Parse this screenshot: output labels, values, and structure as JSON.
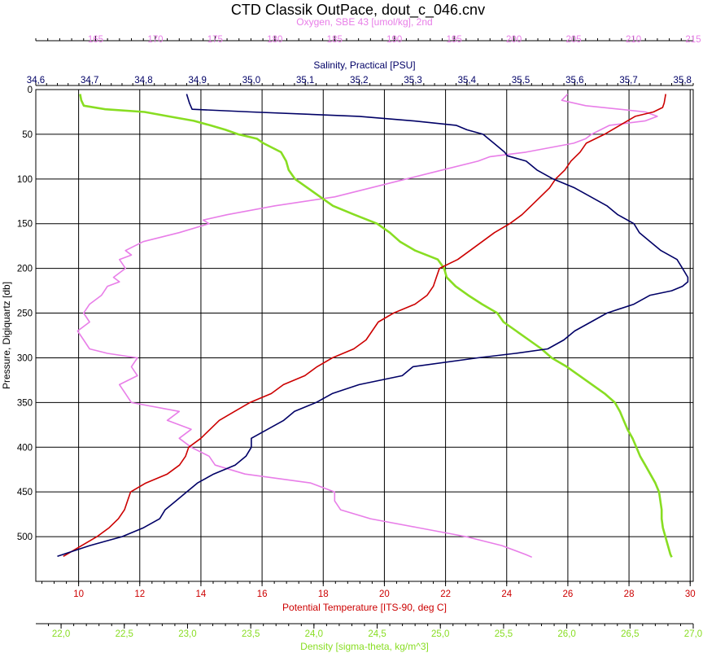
{
  "chart_data": {
    "type": "line",
    "title": "CTD Classik OutPace, dout_c_046.cnv",
    "grid": true,
    "y_axis": {
      "label": "Pressure, Digiquartz [db]",
      "range": [
        550,
        0
      ],
      "ticks": [
        0,
        50,
        100,
        150,
        200,
        250,
        300,
        350,
        400,
        450,
        500
      ],
      "tick_labels": [
        "0",
        "50",
        "100",
        "150",
        "200",
        "250",
        "300",
        "350",
        "400",
        "450",
        "500"
      ]
    },
    "x_axes": [
      {
        "id": "oxygen",
        "label": "Oxygen, SBE 43 [umol/kg], 2nd",
        "position": "top",
        "color": "#e87ee8",
        "range": [
          160,
          215
        ],
        "ticks": [
          165,
          170,
          175,
          180,
          185,
          190,
          195,
          200,
          205,
          210,
          215
        ],
        "tick_labels": [
          "165",
          "170",
          "175",
          "180",
          "185",
          "190",
          "195",
          "200",
          "205",
          "210",
          "215"
        ]
      },
      {
        "id": "salinity",
        "label": "Salinity, Practical [PSU]",
        "position": "top",
        "color": "#000066",
        "range": [
          34.6,
          35.82
        ],
        "ticks": [
          34.6,
          34.7,
          34.8,
          34.9,
          35.0,
          35.1,
          35.2,
          35.3,
          35.4,
          35.5,
          35.6,
          35.7,
          35.8
        ],
        "tick_labels": [
          "34,6",
          "34,7",
          "34,8",
          "34,9",
          "35,0",
          "35,1",
          "35,2",
          "35,3",
          "35,4",
          "35,5",
          "35,6",
          "35,7",
          "35,8"
        ]
      },
      {
        "id": "temperature",
        "label": "Potential Temperature [ITS-90, deg C]",
        "position": "bottom",
        "color": "#cc0000",
        "range": [
          8.6,
          30.1
        ],
        "ticks": [
          10,
          12,
          14,
          16,
          18,
          20,
          22,
          24,
          26,
          28,
          30
        ],
        "tick_labels": [
          "10",
          "12",
          "14",
          "16",
          "18",
          "20",
          "22",
          "24",
          "26",
          "28",
          "30"
        ]
      },
      {
        "id": "density",
        "label": "Density [sigma-theta, kg/m^3]",
        "position": "bottom",
        "color": "#88dd22",
        "range": [
          21.8,
          27.0
        ],
        "ticks": [
          22.0,
          22.5,
          23.0,
          23.5,
          24.0,
          24.5,
          25.0,
          25.5,
          26.0,
          26.5,
          27.0
        ],
        "tick_labels": [
          "22,0",
          "22,5",
          "23,0",
          "23,5",
          "24,0",
          "24,5",
          "25,0",
          "25,5",
          "26,0",
          "26,5",
          "27,0"
        ]
      }
    ],
    "series": [
      {
        "name": "Salinity, Practical [PSU]",
        "axis": "salinity",
        "color": "#000066",
        "y": [
          5,
          15,
          22,
          25,
          30,
          35,
          40,
          45,
          50,
          55,
          60,
          65,
          70,
          74,
          80,
          90,
          100,
          110,
          120,
          130,
          140,
          150,
          160,
          170,
          180,
          190,
          200,
          210,
          215,
          220,
          225,
          230,
          240,
          250,
          260,
          270,
          280,
          290,
          295,
          300,
          310,
          320,
          330,
          340,
          350,
          360,
          370,
          380,
          390,
          400,
          410,
          420,
          430,
          440,
          450,
          460,
          470,
          480,
          490,
          500,
          510,
          518,
          522
        ],
        "x": [
          34.88,
          34.885,
          34.89,
          35.0,
          35.2,
          35.3,
          35.38,
          35.4,
          35.43,
          35.44,
          35.45,
          35.46,
          35.47,
          35.475,
          35.51,
          35.53,
          35.56,
          35.6,
          35.63,
          35.66,
          35.68,
          35.71,
          35.72,
          35.74,
          35.76,
          35.79,
          35.8,
          35.81,
          35.81,
          35.8,
          35.78,
          35.74,
          35.71,
          35.66,
          35.63,
          35.6,
          35.58,
          35.55,
          35.49,
          35.42,
          35.3,
          35.28,
          35.2,
          35.15,
          35.12,
          35.08,
          35.06,
          35.03,
          35.0,
          35.0,
          34.99,
          34.97,
          34.93,
          34.9,
          34.88,
          34.86,
          34.84,
          34.83,
          34.8,
          34.76,
          34.7,
          34.66,
          34.64
        ]
      },
      {
        "name": "Potential Temperature [ITS-90, deg C]",
        "axis": "temperature",
        "color": "#cc0000",
        "y": [
          5,
          15,
          20,
          25,
          30,
          40,
          50,
          60,
          70,
          80,
          90,
          100,
          110,
          120,
          130,
          140,
          150,
          160,
          170,
          180,
          190,
          200,
          210,
          220,
          230,
          240,
          250,
          260,
          270,
          280,
          290,
          300,
          310,
          320,
          330,
          340,
          350,
          360,
          370,
          380,
          390,
          400,
          410,
          420,
          430,
          440,
          450,
          460,
          470,
          480,
          490,
          500,
          510,
          518,
          522
        ],
        "x": [
          29.2,
          29.15,
          29.1,
          28.8,
          28.2,
          27.7,
          27.2,
          26.6,
          26.4,
          26.1,
          25.9,
          25.6,
          25.4,
          25.1,
          24.8,
          24.5,
          24.1,
          23.6,
          23.2,
          22.8,
          22.4,
          21.8,
          21.7,
          21.6,
          21.4,
          21.0,
          20.3,
          19.8,
          19.6,
          19.4,
          19.0,
          18.3,
          17.8,
          17.4,
          16.7,
          16.3,
          15.6,
          15.1,
          14.6,
          14.3,
          14.0,
          13.6,
          13.5,
          13.3,
          12.9,
          12.2,
          11.7,
          11.6,
          11.5,
          11.3,
          11.0,
          10.6,
          10.1,
          9.7,
          9.5
        ]
      },
      {
        "name": "Oxygen, SBE 43 [umol/kg], 2nd",
        "axis": "oxygen",
        "color": "#e87ee8",
        "y": [
          5,
          12,
          18,
          25,
          30,
          35,
          40,
          50,
          55,
          60,
          70,
          75,
          80,
          90,
          100,
          110,
          120,
          130,
          140,
          146,
          150,
          160,
          170,
          180,
          185,
          190,
          200,
          210,
          215,
          220,
          230,
          240,
          250,
          260,
          270,
          280,
          290,
          295,
          300,
          310,
          320,
          330,
          340,
          350,
          360,
          370,
          380,
          390,
          400,
          410,
          420,
          430,
          440,
          450,
          460,
          470,
          480,
          490,
          500,
          510,
          520,
          523
        ],
        "x": [
          204.5,
          204.0,
          206.0,
          211.0,
          212.0,
          211.0,
          208.0,
          206.5,
          206.0,
          205.0,
          201.0,
          198.0,
          197.0,
          194.0,
          191.0,
          188.0,
          185.0,
          180.0,
          176.0,
          174.0,
          174.5,
          172.0,
          169.0,
          167.5,
          168.0,
          167.0,
          167.5,
          166.5,
          167.0,
          166.0,
          165.5,
          164.5,
          164.0,
          164.5,
          163.5,
          164.0,
          164.5,
          166.0,
          168.5,
          168.0,
          168.5,
          167.0,
          167.5,
          168.0,
          172.0,
          171.0,
          173.0,
          172.0,
          173.0,
          174.5,
          175.0,
          177.5,
          183.0,
          185.0,
          185.0,
          185.5,
          188.0,
          192.0,
          196.0,
          199.0,
          201.0,
          201.5
        ]
      },
      {
        "name": "Density [sigma-theta, kg/m^3]",
        "axis": "density",
        "color": "#88dd22",
        "y": [
          5,
          12,
          18,
          22,
          25,
          30,
          35,
          40,
          45,
          50,
          55,
          60,
          70,
          80,
          90,
          100,
          110,
          120,
          130,
          140,
          150,
          160,
          170,
          180,
          190,
          200,
          210,
          220,
          230,
          240,
          250,
          260,
          270,
          280,
          290,
          300,
          310,
          320,
          330,
          340,
          350,
          360,
          370,
          380,
          390,
          400,
          410,
          420,
          430,
          440,
          450,
          460,
          470,
          480,
          490,
          500,
          510,
          520,
          523
        ],
        "x": [
          22.15,
          22.16,
          22.18,
          22.35,
          22.66,
          22.85,
          23.05,
          23.18,
          23.3,
          23.4,
          23.55,
          23.6,
          23.74,
          23.78,
          23.8,
          23.85,
          23.95,
          24.05,
          24.15,
          24.32,
          24.5,
          24.6,
          24.68,
          24.8,
          24.98,
          25.03,
          25.05,
          25.12,
          25.22,
          25.33,
          25.45,
          25.5,
          25.6,
          25.7,
          25.8,
          25.88,
          26.0,
          26.1,
          26.2,
          26.3,
          26.38,
          26.42,
          26.45,
          26.48,
          26.52,
          26.55,
          26.58,
          26.62,
          26.66,
          26.7,
          26.73,
          26.74,
          26.75,
          26.75,
          26.76,
          26.78,
          26.8,
          26.82,
          26.83
        ]
      }
    ]
  }
}
